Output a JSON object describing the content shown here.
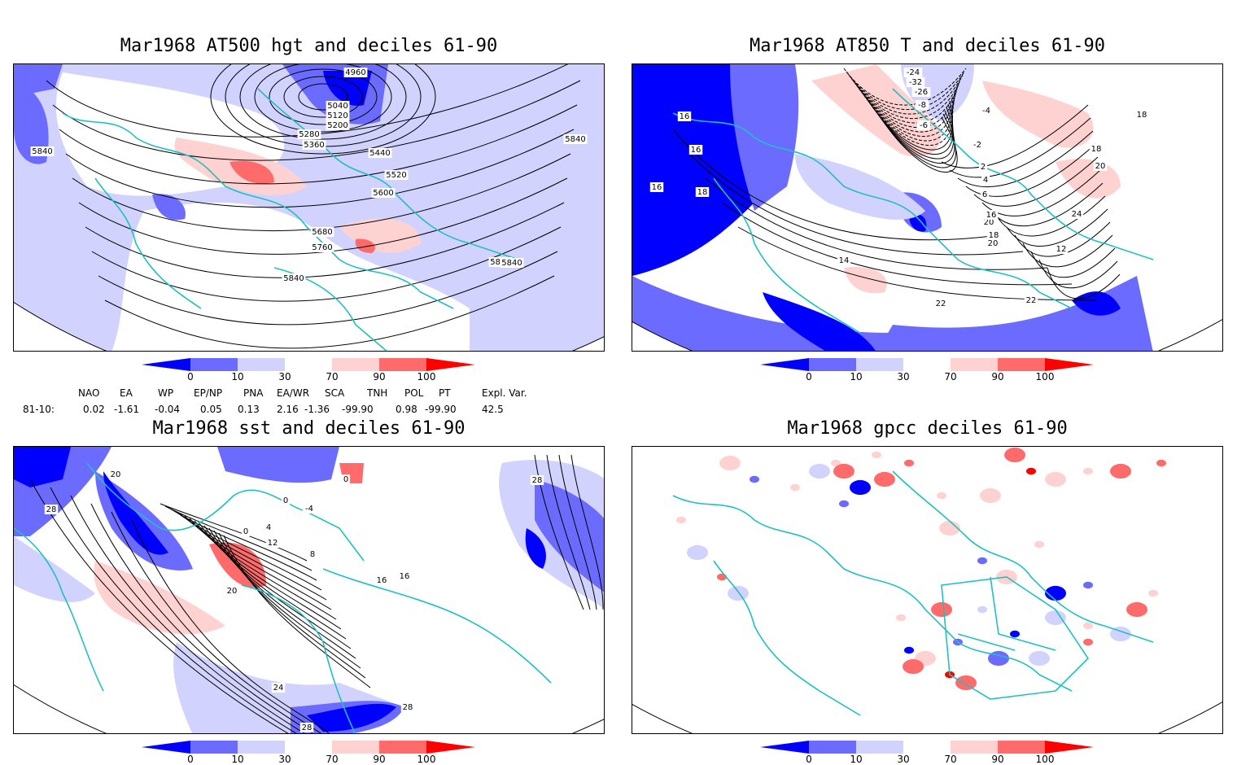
{
  "panels": [
    {
      "id": "p1",
      "title": "Mar1968 AT500 hgt and deciles 61-90",
      "contour_labels": [
        "4960",
        "5040",
        "5120",
        "5200",
        "5280",
        "5360",
        "5440",
        "5520",
        "5600",
        "5680",
        "5760",
        "5840",
        "5840",
        "5840",
        "5840",
        "5840"
      ]
    },
    {
      "id": "p2",
      "title": "Mar1968 AT850 T and deciles 61-90",
      "contour_labels": [
        "-24",
        "-32",
        "-26",
        "-8",
        "-6",
        "-4",
        "-2",
        "2",
        "4",
        "6",
        "14",
        "16",
        "16",
        "16",
        "18",
        "18",
        "18",
        "20",
        "20",
        "20",
        "22",
        "22",
        "24",
        "12",
        "16",
        "18"
      ]
    },
    {
      "id": "p3",
      "title": "Mar1968 sst and deciles 61-90",
      "contour_labels": [
        "28",
        "28",
        "28",
        "20",
        "20",
        "16",
        "12",
        "8",
        "4",
        "0",
        "0",
        "0",
        "-4",
        "16",
        "24",
        "28"
      ]
    },
    {
      "id": "p4",
      "title": "Mar1968 gpcc deciles 61-90",
      "contour_labels": []
    }
  ],
  "colorbar": {
    "tick_labels": [
      "0",
      "10",
      "30",
      "70",
      "90",
      "100"
    ],
    "colors": [
      "#0000ff",
      "#6b6bff",
      "#d2d2ff",
      "#ffffff",
      "#ffd2d2",
      "#ff6b6b",
      "#ff0000"
    ]
  },
  "indices": {
    "headers": [
      "NAO",
      "EA",
      "WP",
      "EP/NP",
      "PNA",
      "EA/WR",
      "SCA",
      "TNH",
      "POL",
      "PT",
      "Expl. Var."
    ],
    "row_label": "81-10:",
    "values": [
      "0.02",
      "-1.61",
      "-0.04",
      "0.05",
      "0.13",
      "2.16",
      "-1.36",
      "-99.90",
      "0.98",
      "-99.90",
      "42.5"
    ]
  },
  "colors": {
    "coast": "#20c0c0",
    "contour": "#000000"
  }
}
